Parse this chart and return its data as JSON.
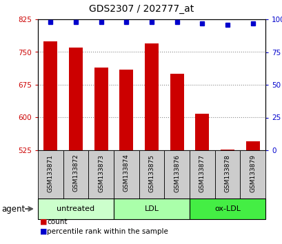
{
  "title": "GDS2307 / 202777_at",
  "samples": [
    "GSM133871",
    "GSM133872",
    "GSM133873",
    "GSM133874",
    "GSM133875",
    "GSM133876",
    "GSM133877",
    "GSM133878",
    "GSM133879"
  ],
  "counts": [
    775,
    760,
    715,
    710,
    770,
    700,
    608,
    527,
    545
  ],
  "percentiles": [
    98,
    98,
    98,
    98,
    98,
    98,
    97,
    96,
    97
  ],
  "ylim_left": [
    525,
    825
  ],
  "ylim_right": [
    0,
    100
  ],
  "yticks_left": [
    525,
    600,
    675,
    750,
    825
  ],
  "yticks_right": [
    0,
    25,
    50,
    75,
    100
  ],
  "groups": [
    {
      "label": "untreated",
      "start": 0,
      "end": 3,
      "color": "#ccffcc"
    },
    {
      "label": "LDL",
      "start": 3,
      "end": 6,
      "color": "#aaffaa"
    },
    {
      "label": "ox-LDL",
      "start": 6,
      "end": 9,
      "color": "#44ee44"
    }
  ],
  "bar_color": "#cc0000",
  "dot_color": "#0000cc",
  "bar_width": 0.55,
  "grid_color": "#888888",
  "tick_label_color_left": "#cc0000",
  "tick_label_color_right": "#0000cc",
  "agent_label": "agent",
  "legend_count": "count",
  "legend_pct": "percentile rank within the sample",
  "sample_cell_color": "#cccccc",
  "bg_color": "#ffffff",
  "plot_bg": "#ffffff"
}
